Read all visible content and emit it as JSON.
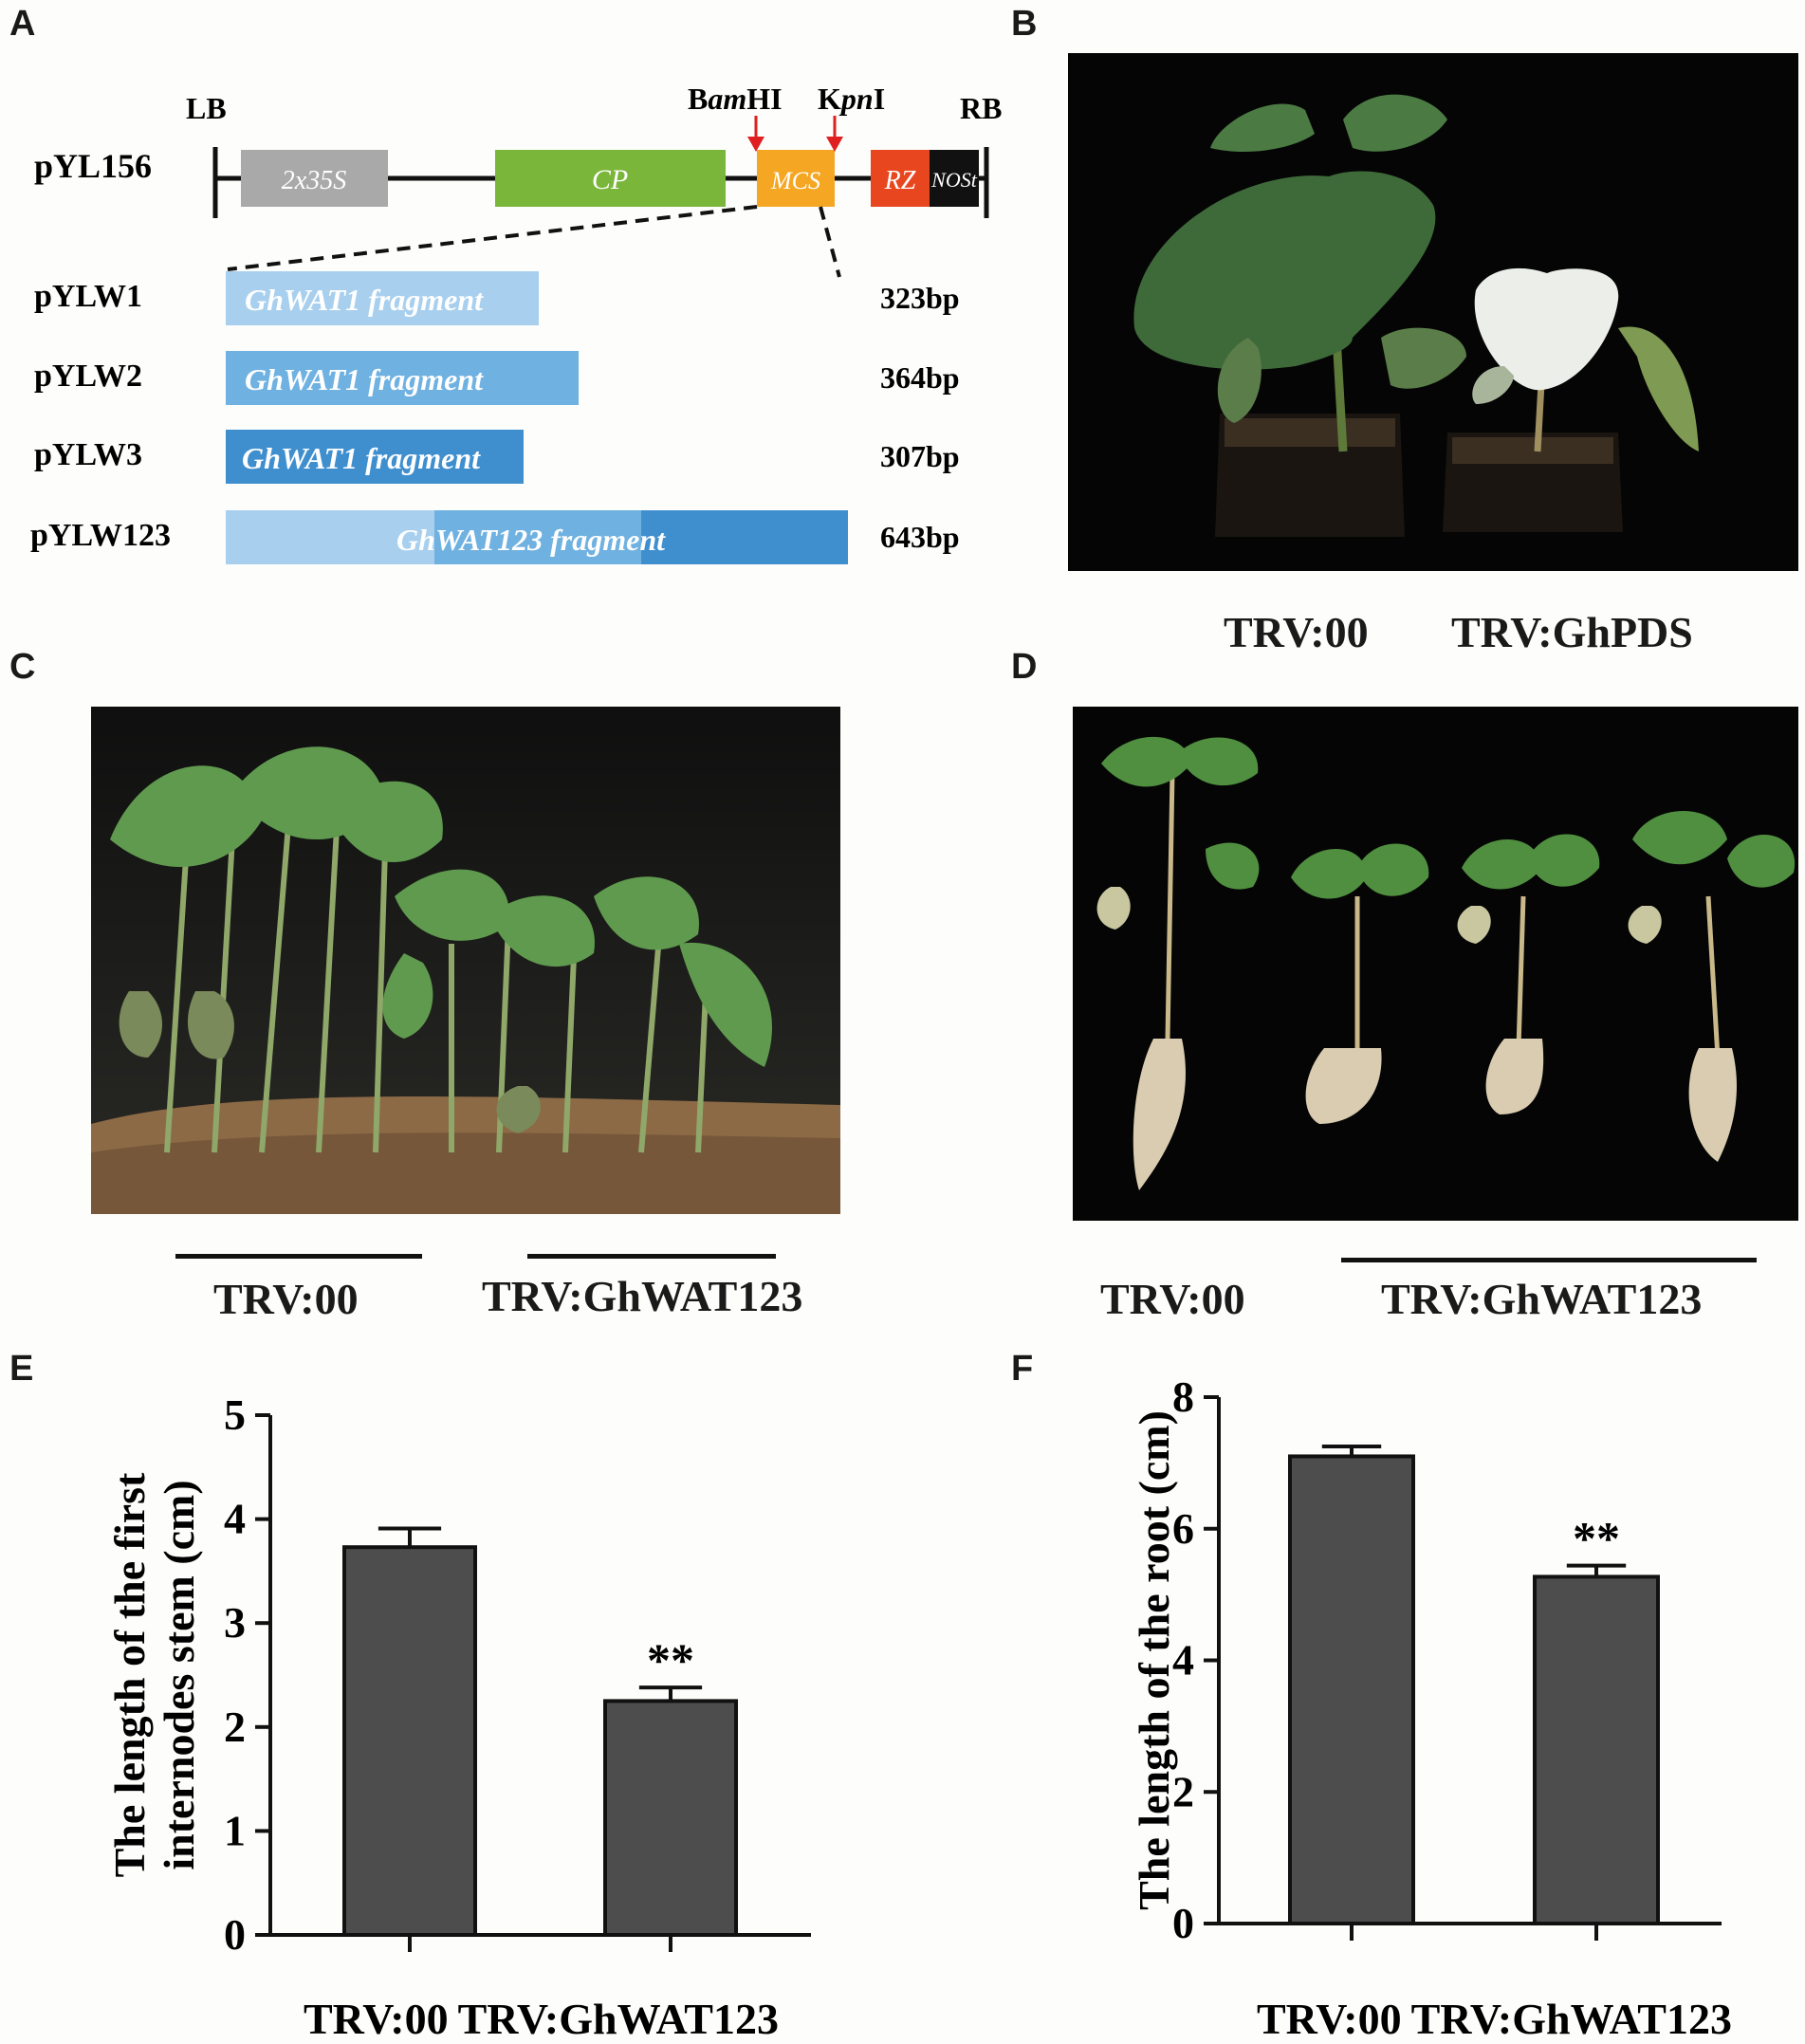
{
  "panels": {
    "A": {
      "letter": "A",
      "vector_name": "pYL156",
      "lb": "LB",
      "rb": "RB",
      "site1_prefix": "B",
      "site1_italic": "am",
      "site1_suffix": "HI",
      "site2_prefix": "K",
      "site2_italic": "pn",
      "site2_suffix": "I",
      "elements": {
        "promoter": "2x35S",
        "cp": "CP",
        "mcs": "MCS",
        "rz": "RZ",
        "nos": "NOSt"
      },
      "constructs": [
        {
          "name": "pYLW1",
          "fragment": "GhWAT1 fragment",
          "size": "323bp",
          "color": "#a8d0ee"
        },
        {
          "name": "pYLW2",
          "fragment": "GhWAT1 fragment",
          "size": "364bp",
          "color": "#6fb1e0"
        },
        {
          "name": "pYLW3",
          "fragment": "GhWAT1 fragment",
          "size": "307bp",
          "color": "#3f8fcf"
        },
        {
          "name": "pYLW123",
          "fragment": "GhWAT123 fragment",
          "size": "643bp",
          "color": "#6fb1e0"
        }
      ],
      "colors": {
        "promoter": "#a9a9a9",
        "cp": "#7ab639",
        "mcs": "#f5a623",
        "rz": "#e8461e",
        "nos": "#111111",
        "arrow": "#e02020"
      }
    },
    "B": {
      "letter": "B",
      "labels": [
        "TRV:00",
        "TRV:GhPDS"
      ]
    },
    "C": {
      "letter": "C",
      "labels": [
        "TRV:00",
        "TRV:GhWAT123"
      ]
    },
    "D": {
      "letter": "D",
      "labels": [
        "TRV:00",
        "TRV:GhWAT123"
      ]
    },
    "E": {
      "letter": "E",
      "significance": "**"
    },
    "F": {
      "letter": "F",
      "significance": "**"
    }
  },
  "chart_data": [
    {
      "panel": "E",
      "type": "bar",
      "categories": [
        "TRV:00",
        "TRV:GhWAT123"
      ],
      "values": [
        3.73,
        2.25
      ],
      "errors": [
        0.18,
        0.13
      ],
      "ylabel_line1": "The length of the first",
      "ylabel_line2": "internodes stem (cm)",
      "ylim": [
        0,
        5
      ],
      "yticks": [
        "0",
        "1",
        "2",
        "3",
        "4",
        "5"
      ],
      "bar_color": "#4d4d4d"
    },
    {
      "panel": "F",
      "type": "bar",
      "categories": [
        "TRV:00",
        "TRV:GhWAT123"
      ],
      "values": [
        7.1,
        5.27
      ],
      "errors": [
        0.15,
        0.17
      ],
      "ylabel_line1": "The length of the root (cm)",
      "ylim": [
        0,
        8
      ],
      "yticks": [
        "0",
        "2",
        "4",
        "6",
        "8"
      ],
      "bar_color": "#4d4d4d"
    }
  ]
}
